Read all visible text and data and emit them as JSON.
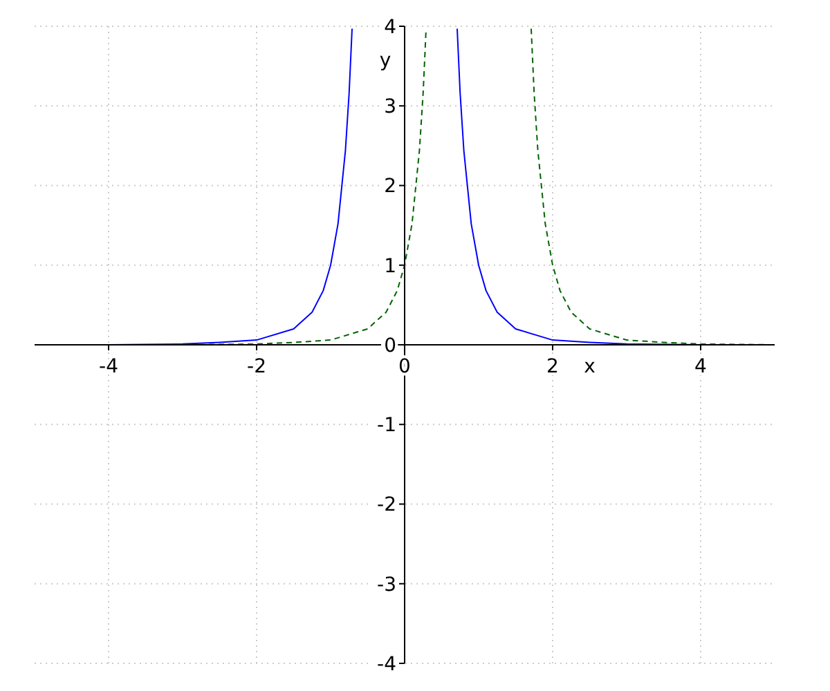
{
  "chart_data": {
    "type": "line",
    "xlabel": "x",
    "ylabel": "y",
    "xlim": [
      -5,
      5
    ],
    "ylim": [
      -4,
      4
    ],
    "xticks": [
      -4,
      -2,
      0,
      2,
      4
    ],
    "yticks": [
      -4,
      -3,
      -2,
      -1,
      0,
      1,
      2,
      3,
      4
    ],
    "grid": true,
    "series": [
      {
        "color": "#0000ff",
        "line_style": "solid",
        "x": [
          -5,
          -4,
          -3,
          -2.5,
          -2,
          -1.5,
          -1.25,
          -1.1,
          -1,
          -0.9,
          -0.8,
          -0.75,
          -0.71,
          0,
          0.71,
          0.75,
          0.8,
          0.9,
          1,
          1.1,
          1.25,
          1.5,
          2,
          2.5,
          3,
          4,
          5
        ],
        "values": [
          0,
          0,
          0.01,
          0.03,
          0.06,
          0.2,
          0.41,
          0.68,
          1,
          1.52,
          2.44,
          3.16,
          3.97,
          null,
          3.97,
          3.16,
          2.44,
          1.52,
          1,
          0.68,
          0.41,
          0.2,
          0.06,
          0.03,
          0.01,
          0,
          0
        ]
      },
      {
        "color": "#006400",
        "line_style": "dashed",
        "x": [
          -5,
          -3,
          -2,
          -1.5,
          -1,
          -0.5,
          -0.25,
          -0.1,
          0,
          0.1,
          0.2,
          0.25,
          0.29,
          1,
          1.71,
          1.75,
          1.8,
          1.9,
          2,
          2.1,
          2.25,
          2.5,
          3,
          3.5,
          4,
          5
        ],
        "values": [
          0,
          0,
          0.01,
          0.03,
          0.06,
          0.2,
          0.41,
          0.68,
          1,
          1.52,
          2.44,
          3.16,
          3.97,
          null,
          3.97,
          3.16,
          2.44,
          1.52,
          1,
          0.68,
          0.41,
          0.2,
          0.06,
          0.03,
          0.01,
          0
        ]
      }
    ]
  }
}
